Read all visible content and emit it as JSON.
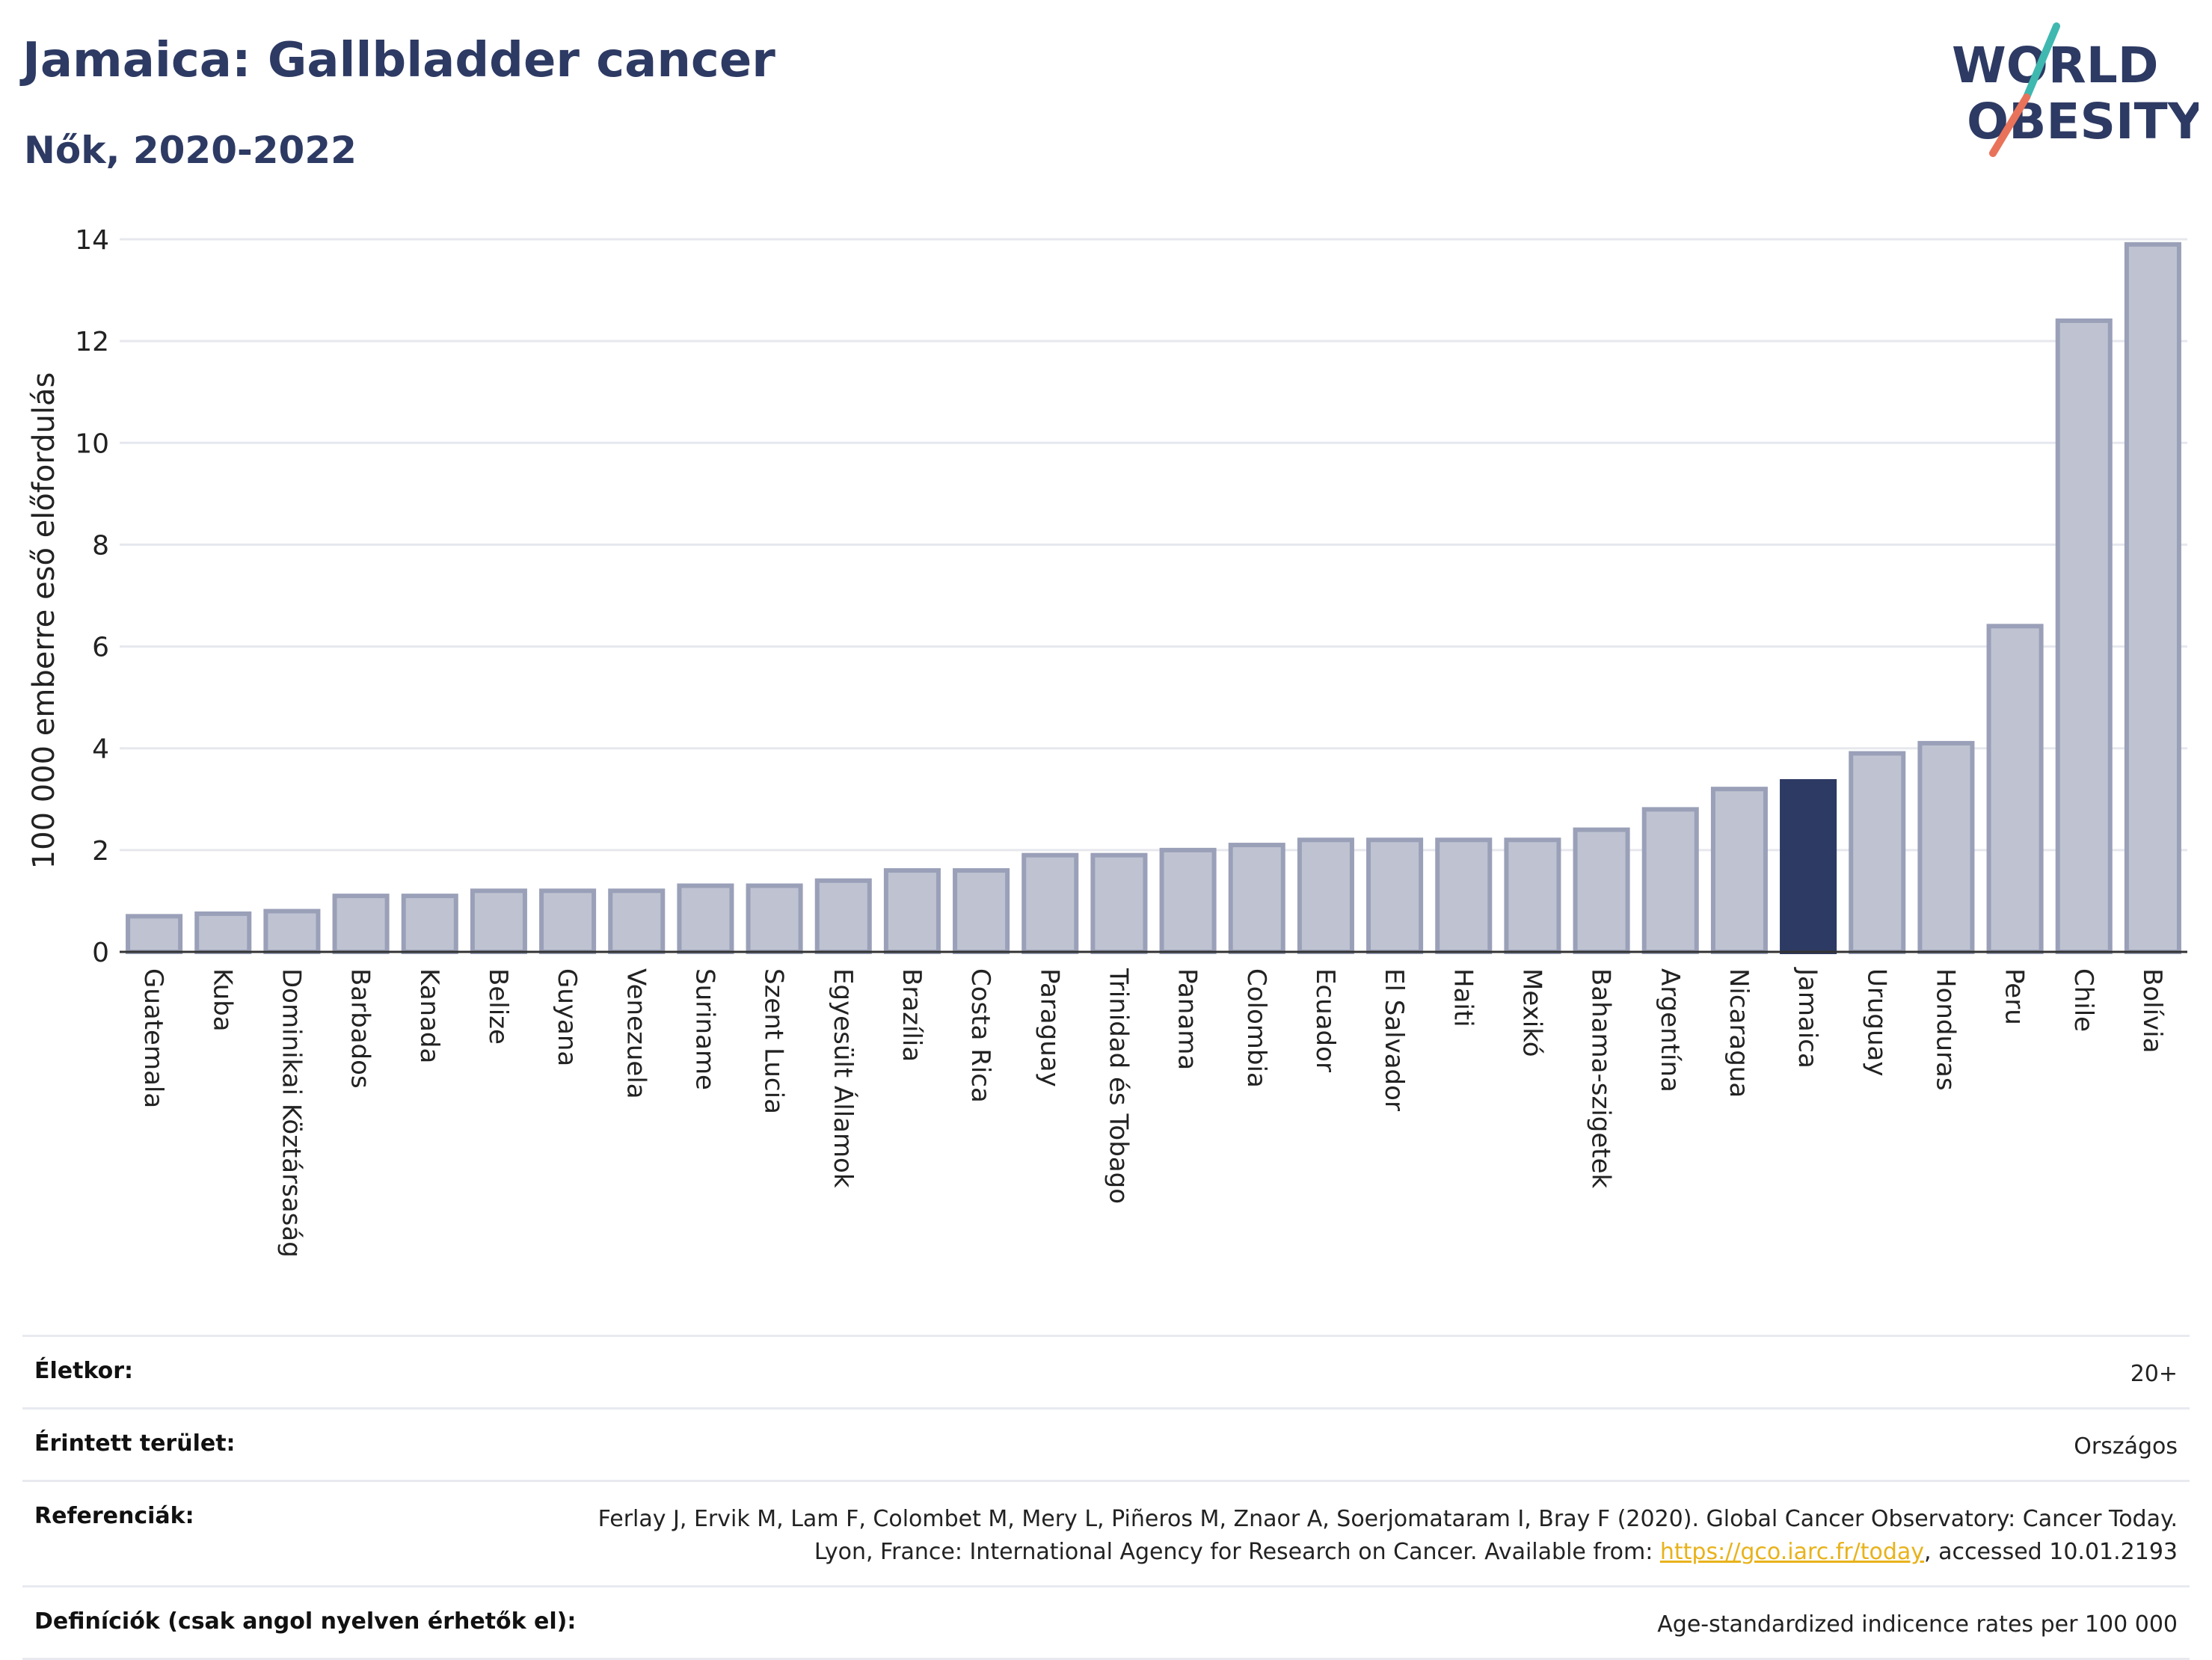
{
  "header": {
    "title": "Jamaica: Gallbladder cancer",
    "subtitle": "Nők, 2020-2022"
  },
  "logo": {
    "line1": "WORLD",
    "line2": "OBESITY",
    "accent_teal": "#3fb8b0",
    "accent_red": "#e8735a",
    "text_color": "#2d3a63"
  },
  "colors": {
    "bar": "#bfc3d1",
    "bar_border": "#9aa0b8",
    "highlight": "#2d3a63",
    "grid": "#e6e8ee"
  },
  "chart_data": {
    "type": "bar",
    "title": "Jamaica: Gallbladder cancer",
    "subtitle": "Nők, 2020-2022",
    "ylabel": "100 000 emberre eső előfordulás",
    "xlabel": "",
    "ylim": [
      0,
      14
    ],
    "yticks": [
      0,
      2,
      4,
      6,
      8,
      10,
      12,
      14
    ],
    "grid": true,
    "highlight": "Jamaica",
    "categories": [
      "Guatemala",
      "Kuba",
      "Dominikai Köztársaság",
      "Barbados",
      "Kanada",
      "Belize",
      "Guyana",
      "Venezuela",
      "Suriname",
      "Szent Lucia",
      "Egyesült Államok",
      "Brazília",
      "Costa Rica",
      "Paraguay",
      "Trinidad és Tobago",
      "Panama",
      "Colombia",
      "Ecuador",
      "El Salvador",
      "Haiti",
      "Mexikó",
      "Bahama-szigetek",
      "Argentína",
      "Nicaragua",
      "Jamaica",
      "Uruguay",
      "Honduras",
      "Peru",
      "Chile",
      "Bolívia"
    ],
    "values": [
      0.7,
      0.75,
      0.8,
      1.1,
      1.1,
      1.2,
      1.2,
      1.2,
      1.3,
      1.3,
      1.4,
      1.6,
      1.6,
      1.9,
      1.9,
      2.0,
      2.1,
      2.2,
      2.2,
      2.2,
      2.2,
      2.4,
      2.8,
      3.2,
      3.35,
      3.9,
      4.1,
      6.4,
      12.4,
      13.9
    ]
  },
  "info": {
    "age_label": "Életkor:",
    "age_value": "20+",
    "area_label": "Érintett terület:",
    "area_value": "Országos",
    "ref_label": "Referenciák:",
    "ref_text_1": "Ferlay J, Ervik M, Lam F, Colombet M, Mery L, Piñeros M, Znaor A, Soerjomataram I, Bray F (2020). Global Cancer Observatory: Cancer Today. Lyon, France: International Agency for Research on Cancer. Available from: ",
    "ref_link": "https://gco.iarc.fr/today",
    "ref_text_2": ", accessed 10.01.2193",
    "def_label": "Definíciók (csak angol nyelven érhetők el):",
    "def_value": "Age-standardized indicence rates per 100 000"
  }
}
